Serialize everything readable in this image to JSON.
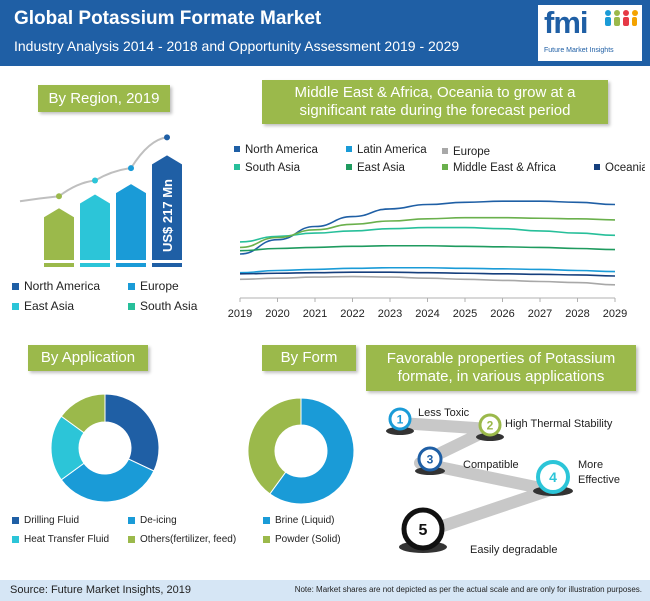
{
  "header": {
    "title": "Global Potassium Formate Market",
    "subtitle": "Industry Analysis 2014 - 2018 and Opportunity Assessment 2019 - 2029",
    "logo_mark": "fmi",
    "logo_text": "Future Market Insights"
  },
  "region": {
    "label": "By Region, 2019",
    "bar_annotation": "US$ 217 Mn",
    "legend": [
      {
        "name": "North America",
        "color": "#1f5fa5"
      },
      {
        "name": "Europe",
        "color": "#1a9bd7"
      },
      {
        "name": "East Asia",
        "color": "#2cc5d8"
      },
      {
        "name": "South Asia",
        "color": "#27bf9a"
      }
    ]
  },
  "trend": {
    "label_line1": "Middle East & Africa, Oceania to grow at a",
    "label_line2": "significant rate during the forecast period"
  },
  "application": {
    "label": "By Application",
    "legend": [
      {
        "name": "Drilling Fluid",
        "color": "#1f5fa5"
      },
      {
        "name": "De-icing",
        "color": "#1a9bd7"
      },
      {
        "name": "Heat Transfer Fluid",
        "color": "#2cc5d8"
      },
      {
        "name": "Others(fertilizer, feed)",
        "color": "#9bb94b"
      }
    ]
  },
  "form": {
    "label": "By Form",
    "legend": [
      {
        "name": "Brine (Liquid)",
        "color": "#1a9bd7"
      },
      {
        "name": "Powder (Solid)",
        "color": "#9bb94b"
      }
    ]
  },
  "properties": {
    "label_line1": "Favorable properties of Potassium",
    "label_line2": "formate, in various applications",
    "items": [
      {
        "num": "1",
        "text": "Less Toxic",
        "color": "#1a9bd7"
      },
      {
        "num": "2",
        "text": "High Thermal Stability",
        "color": "#9bb94b"
      },
      {
        "num": "3",
        "text": "Compatible",
        "color": "#1f5fa5"
      },
      {
        "num": "4",
        "text": "More Effective",
        "color": "#2cc5d8"
      },
      {
        "num": "5",
        "text": "Easily degradable",
        "color": "#111111"
      }
    ]
  },
  "footer": {
    "source": "Source: Future Market Insights, 2019",
    "note": "Note: Market shares are not depicted as per the actual scale and are only for illustration purposes."
  },
  "chart_data": [
    {
      "type": "bar",
      "categories": [
        "South Asia",
        "East Asia",
        "Europe",
        "North America"
      ],
      "values": [
        45,
        57,
        66,
        91
      ],
      "colors": [
        "#9bb94b",
        "#2cc5d8",
        "#1a9bd7",
        "#1f5fa5"
      ],
      "annotation": "US$ 217 Mn",
      "ylim": [
        0,
        100
      ]
    },
    {
      "type": "line",
      "x": [
        2019,
        2020,
        2021,
        2022,
        2023,
        2024,
        2025,
        2026,
        2027,
        2028,
        2029
      ],
      "xlabel": "",
      "ylabel": "",
      "ylim": [
        0,
        100
      ],
      "grid": false,
      "legend": "top",
      "series": [
        {
          "name": "North America",
          "color": "#1f5fa5",
          "values": [
            40,
            53,
            65,
            74,
            81,
            85,
            87,
            88,
            88,
            87,
            85
          ]
        },
        {
          "name": "Latin America",
          "color": "#1a9bd7",
          "values": [
            23,
            25,
            26,
            27,
            27.5,
            27.5,
            27,
            26.5,
            26,
            25,
            24
          ]
        },
        {
          "name": "Europe",
          "color": "#a8a8a8",
          "values": [
            17,
            18,
            19,
            19.5,
            19,
            18,
            17,
            16,
            15,
            14,
            12
          ]
        },
        {
          "name": "South Asia",
          "color": "#27bf9a",
          "values": [
            51,
            56,
            59,
            61,
            63,
            64,
            64,
            63,
            61,
            59,
            57
          ]
        },
        {
          "name": "East Asia",
          "color": "#1f9b5f",
          "values": [
            43,
            45,
            46,
            47,
            47.5,
            47.5,
            47,
            46.5,
            46,
            45,
            44
          ]
        },
        {
          "name": "Middle East & Africa",
          "color": "#6ab04c",
          "values": [
            46,
            55,
            62,
            67,
            70,
            72,
            73,
            73,
            72.5,
            72,
            71
          ]
        },
        {
          "name": "Oceania",
          "color": "#163f7d",
          "values": [
            22,
            22.5,
            23,
            23.5,
            23.5,
            23,
            22.5,
            22,
            21.5,
            21,
            20
          ]
        }
      ]
    },
    {
      "type": "pie",
      "donut": true,
      "categories": [
        "Drilling Fluid",
        "De-icing",
        "Heat Transfer Fluid",
        "Others(fertilizer, feed)"
      ],
      "values": [
        32,
        33,
        20,
        15
      ],
      "colors": [
        "#1f5fa5",
        "#1a9bd7",
        "#2cc5d8",
        "#9bb94b"
      ]
    },
    {
      "type": "pie",
      "donut": true,
      "categories": [
        "Brine (Liquid)",
        "Powder (Solid)"
      ],
      "values": [
        60,
        40
      ],
      "colors": [
        "#1a9bd7",
        "#9bb94b"
      ]
    }
  ]
}
